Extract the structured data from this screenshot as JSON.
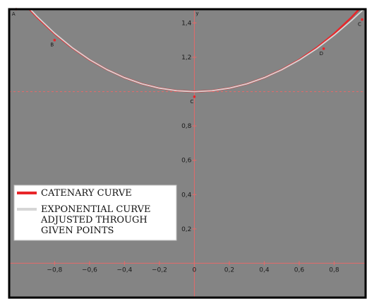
{
  "chart_data": {
    "type": "line",
    "xlim": [
      -1.06,
      0.98
    ],
    "ylim": [
      -0.2,
      1.48
    ],
    "x_ticks": [
      -0.8,
      -0.6,
      -0.4,
      -0.2,
      0,
      0.2,
      0.4,
      0.6,
      0.8
    ],
    "x_tick_labels": [
      "−0,8",
      "−0,6",
      "−0,4",
      "−0,2",
      "0",
      "0,2",
      "0,4",
      "0,6",
      "0,8"
    ],
    "y_ticks": [
      0.2,
      0.4,
      0.6,
      0.8,
      1.2,
      1.4
    ],
    "y_tick_labels": [
      "0,2",
      "0,4",
      "0,6",
      "0,8",
      "1,2",
      "1,4"
    ],
    "y_axis_label": "y",
    "reference_line_y": 1.0,
    "grid": false,
    "legend_position": "bottom-left",
    "colors": {
      "background": "#848484",
      "catenary": "#e8262a",
      "exponential": "#d6d6d6",
      "axes": "#e46a6a",
      "frame": "#000000"
    },
    "series": [
      {
        "name": "CATENARY CURVE",
        "x": [
          -1.0,
          -0.9,
          -0.8,
          -0.7,
          -0.6,
          -0.5,
          -0.4,
          -0.3,
          -0.2,
          -0.1,
          0,
          0.1,
          0.2,
          0.3,
          0.4,
          0.5,
          0.6,
          0.7,
          0.8,
          0.9,
          0.98
        ],
        "y": [
          1.54,
          1.433,
          1.337,
          1.255,
          1.185,
          1.128,
          1.081,
          1.045,
          1.02,
          1.005,
          1.0,
          1.005,
          1.02,
          1.045,
          1.081,
          1.128,
          1.185,
          1.255,
          1.337,
          1.433,
          1.52
        ]
      },
      {
        "name": "EXPONENTIAL CURVE\nADJUSTED THROUGH\nGIVEN POINTS",
        "x": [
          -1.0,
          -0.9,
          -0.8,
          -0.7,
          -0.6,
          -0.5,
          -0.4,
          -0.3,
          -0.2,
          -0.1,
          0,
          0.1,
          0.2,
          0.3,
          0.4,
          0.5,
          0.6,
          0.7,
          0.8,
          0.9,
          0.98
        ],
        "y": [
          1.545,
          1.437,
          1.34,
          1.257,
          1.186,
          1.128,
          1.081,
          1.045,
          1.02,
          1.005,
          1.0,
          1.005,
          1.02,
          1.045,
          1.081,
          1.127,
          1.183,
          1.25,
          1.328,
          1.415,
          1.49
        ]
      }
    ],
    "points": [
      {
        "label": "A",
        "x": -1.02,
        "y": 1.48
      },
      {
        "label": "B",
        "x": -0.8,
        "y": 1.3
      },
      {
        "label": "C",
        "x": 0,
        "y": 0.97
      },
      {
        "label": "D",
        "x": 0.74,
        "y": 1.25
      },
      {
        "label": "C",
        "x": 0.96,
        "y": 1.42
      }
    ],
    "legend": [
      {
        "color": "#e8262a",
        "lines": [
          "CATENARY CURVE"
        ]
      },
      {
        "color": "#d6d6d6",
        "lines": [
          "EXPONENTIAL CURVE",
          "ADJUSTED THROUGH",
          "GIVEN POINTS"
        ]
      }
    ]
  }
}
